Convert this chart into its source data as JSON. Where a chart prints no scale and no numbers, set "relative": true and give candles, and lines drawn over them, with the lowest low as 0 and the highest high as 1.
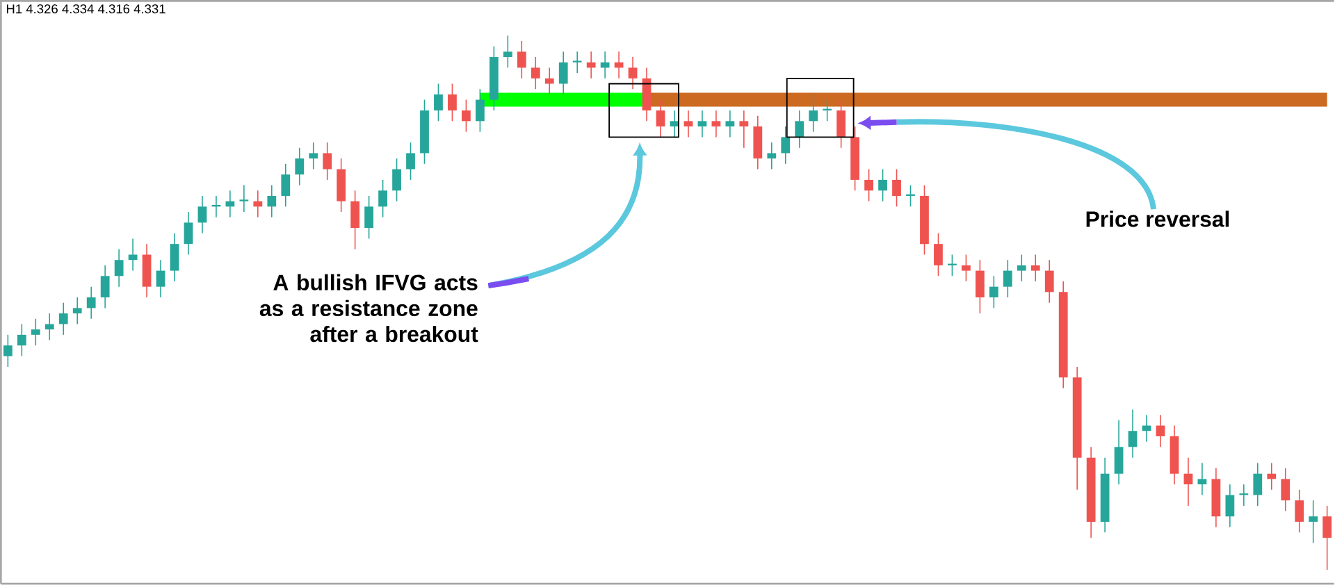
{
  "chart_data": {
    "type": "candlestick",
    "relative": true,
    "categories": [
      null,
      null,
      null,
      null,
      null,
      null,
      null,
      null,
      null,
      null,
      null,
      null,
      null,
      null,
      null,
      null,
      null,
      null,
      null,
      null,
      null,
      null,
      null,
      null,
      null,
      null,
      null,
      null,
      null,
      null,
      null,
      null,
      null,
      null,
      null,
      null,
      null,
      null,
      null,
      null,
      null,
      null,
      null,
      null,
      null,
      null,
      null,
      null,
      null,
      null,
      null,
      null,
      null,
      null,
      null,
      null,
      null,
      null,
      null,
      null,
      null,
      null,
      null,
      null,
      null,
      null,
      null,
      null,
      null,
      null,
      null,
      null,
      null,
      null,
      null,
      null,
      null,
      null,
      null,
      null,
      null,
      null,
      null,
      null,
      null,
      null,
      null,
      null,
      null,
      null,
      null,
      null,
      null,
      null,
      null,
      null
    ],
    "ohlc": [
      [
        0.4,
        0.44,
        0.38,
        0.42
      ],
      [
        0.42,
        0.46,
        0.4,
        0.44
      ],
      [
        0.44,
        0.47,
        0.42,
        0.45
      ],
      [
        0.45,
        0.48,
        0.43,
        0.46
      ],
      [
        0.46,
        0.5,
        0.44,
        0.48
      ],
      [
        0.48,
        0.51,
        0.46,
        0.49
      ],
      [
        0.49,
        0.53,
        0.47,
        0.51
      ],
      [
        0.51,
        0.57,
        0.49,
        0.55
      ],
      [
        0.55,
        0.6,
        0.53,
        0.58
      ],
      [
        0.58,
        0.62,
        0.56,
        0.59
      ],
      [
        0.59,
        0.61,
        0.51,
        0.53
      ],
      [
        0.53,
        0.58,
        0.51,
        0.56
      ],
      [
        0.56,
        0.63,
        0.54,
        0.61
      ],
      [
        0.61,
        0.67,
        0.59,
        0.65
      ],
      [
        0.65,
        0.7,
        0.63,
        0.68
      ],
      [
        0.68,
        0.7,
        0.66,
        0.68
      ],
      [
        0.68,
        0.71,
        0.66,
        0.69
      ],
      [
        0.69,
        0.72,
        0.67,
        0.69
      ],
      [
        0.69,
        0.71,
        0.66,
        0.68
      ],
      [
        0.68,
        0.72,
        0.66,
        0.7
      ],
      [
        0.7,
        0.76,
        0.68,
        0.74
      ],
      [
        0.74,
        0.79,
        0.72,
        0.77
      ],
      [
        0.77,
        0.8,
        0.75,
        0.78
      ],
      [
        0.78,
        0.8,
        0.73,
        0.75
      ],
      [
        0.75,
        0.77,
        0.67,
        0.69
      ],
      [
        0.69,
        0.71,
        0.6,
        0.64
      ],
      [
        0.64,
        0.7,
        0.62,
        0.68
      ],
      [
        0.68,
        0.73,
        0.66,
        0.71
      ],
      [
        0.71,
        0.77,
        0.69,
        0.75
      ],
      [
        0.75,
        0.8,
        0.73,
        0.78
      ],
      [
        0.78,
        0.88,
        0.76,
        0.86
      ],
      [
        0.86,
        0.91,
        0.84,
        0.89
      ],
      [
        0.89,
        0.91,
        0.84,
        0.86
      ],
      [
        0.86,
        0.88,
        0.82,
        0.84
      ],
      [
        0.84,
        0.9,
        0.82,
        0.88
      ],
      [
        0.88,
        0.98,
        0.86,
        0.96
      ],
      [
        0.96,
        1.0,
        0.94,
        0.97
      ],
      [
        0.97,
        0.99,
        0.92,
        0.94
      ],
      [
        0.94,
        0.96,
        0.9,
        0.92
      ],
      [
        0.92,
        0.94,
        0.89,
        0.91
      ],
      [
        0.91,
        0.97,
        0.89,
        0.95
      ],
      [
        0.95,
        0.97,
        0.93,
        0.95
      ],
      [
        0.95,
        0.97,
        0.92,
        0.94
      ],
      [
        0.94,
        0.97,
        0.92,
        0.95
      ],
      [
        0.95,
        0.97,
        0.92,
        0.94
      ],
      [
        0.94,
        0.96,
        0.9,
        0.92
      ],
      [
        0.92,
        0.94,
        0.84,
        0.86
      ],
      [
        0.86,
        0.88,
        0.81,
        0.83
      ],
      [
        0.83,
        0.86,
        0.81,
        0.84
      ],
      [
        0.84,
        0.86,
        0.81,
        0.83
      ],
      [
        0.83,
        0.86,
        0.81,
        0.84
      ],
      [
        0.84,
        0.86,
        0.81,
        0.83
      ],
      [
        0.83,
        0.86,
        0.81,
        0.84
      ],
      [
        0.84,
        0.86,
        0.79,
        0.83
      ],
      [
        0.83,
        0.85,
        0.75,
        0.77
      ],
      [
        0.77,
        0.8,
        0.75,
        0.78
      ],
      [
        0.78,
        0.83,
        0.76,
        0.81
      ],
      [
        0.81,
        0.86,
        0.79,
        0.84
      ],
      [
        0.84,
        0.89,
        0.82,
        0.86
      ],
      [
        0.86,
        0.88,
        0.84,
        0.86
      ],
      [
        0.86,
        0.88,
        0.79,
        0.81
      ],
      [
        0.81,
        0.83,
        0.71,
        0.73
      ],
      [
        0.73,
        0.75,
        0.69,
        0.71
      ],
      [
        0.71,
        0.75,
        0.69,
        0.73
      ],
      [
        0.73,
        0.75,
        0.68,
        0.7
      ],
      [
        0.7,
        0.72,
        0.68,
        0.7
      ],
      [
        0.7,
        0.72,
        0.59,
        0.61
      ],
      [
        0.61,
        0.63,
        0.55,
        0.57
      ],
      [
        0.57,
        0.59,
        0.55,
        0.57
      ],
      [
        0.57,
        0.59,
        0.54,
        0.56
      ],
      [
        0.56,
        0.58,
        0.48,
        0.51
      ],
      [
        0.51,
        0.55,
        0.49,
        0.53
      ],
      [
        0.53,
        0.58,
        0.51,
        0.56
      ],
      [
        0.56,
        0.59,
        0.54,
        0.57
      ],
      [
        0.57,
        0.59,
        0.54,
        0.56
      ],
      [
        0.56,
        0.58,
        0.5,
        0.52
      ],
      [
        0.52,
        0.54,
        0.34,
        0.36
      ],
      [
        0.36,
        0.38,
        0.15,
        0.21
      ],
      [
        0.21,
        0.23,
        0.06,
        0.09
      ],
      [
        0.09,
        0.21,
        0.07,
        0.18
      ],
      [
        0.18,
        0.28,
        0.16,
        0.23
      ],
      [
        0.23,
        0.3,
        0.21,
        0.26
      ],
      [
        0.26,
        0.29,
        0.24,
        0.27
      ],
      [
        0.27,
        0.29,
        0.23,
        0.25
      ],
      [
        0.25,
        0.27,
        0.16,
        0.18
      ],
      [
        0.18,
        0.21,
        0.12,
        0.16
      ],
      [
        0.16,
        0.2,
        0.14,
        0.17
      ],
      [
        0.17,
        0.19,
        0.08,
        0.1
      ],
      [
        0.1,
        0.16,
        0.08,
        0.14
      ],
      [
        0.14,
        0.16,
        0.12,
        0.14
      ],
      [
        0.14,
        0.2,
        0.12,
        0.18
      ],
      [
        0.18,
        0.2,
        0.15,
        0.17
      ],
      [
        0.17,
        0.19,
        0.11,
        0.13
      ],
      [
        0.13,
        0.15,
        0.07,
        0.09
      ],
      [
        0.09,
        0.13,
        0.05,
        0.1
      ],
      [
        0.1,
        0.12,
        0.0,
        0.06
      ]
    ],
    "series": [
      {
        "type": "line",
        "color": "#00ff00",
        "values": [
          null,
          null,
          null,
          null,
          null,
          null,
          null,
          null,
          null,
          null,
          null,
          null,
          null,
          null,
          null,
          null,
          null,
          null,
          null,
          null,
          null,
          null,
          null,
          null,
          null,
          null,
          null,
          null,
          null,
          null,
          null,
          null,
          null,
          null,
          0.88,
          0.88,
          0.88,
          0.88,
          0.88,
          0.88,
          0.88,
          0.88,
          0.88,
          0.88,
          0.88,
          0.88,
          0.88,
          null,
          null,
          null,
          null,
          null,
          null,
          null,
          null,
          null,
          null,
          null,
          null,
          null,
          null,
          null,
          null,
          null,
          null,
          null,
          null,
          null,
          null,
          null,
          null,
          null,
          null,
          null,
          null,
          null,
          null,
          null,
          null,
          null,
          null,
          null,
          null,
          null,
          null,
          null,
          null,
          null,
          null,
          null,
          null,
          null,
          null,
          null,
          null,
          null
        ]
      },
      {
        "type": "line",
        "color": "#cc6a21",
        "values": [
          null,
          null,
          null,
          null,
          null,
          null,
          null,
          null,
          null,
          null,
          null,
          null,
          null,
          null,
          null,
          null,
          null,
          null,
          null,
          null,
          null,
          null,
          null,
          null,
          null,
          null,
          null,
          null,
          null,
          null,
          null,
          null,
          null,
          null,
          null,
          null,
          null,
          null,
          null,
          null,
          null,
          null,
          null,
          null,
          null,
          null,
          0.88,
          0.88,
          0.88,
          0.88,
          0.88,
          0.88,
          0.88,
          0.88,
          0.88,
          0.88,
          0.88,
          0.88,
          0.88,
          0.88,
          0.88,
          0.88,
          0.88,
          0.88,
          0.88,
          0.88,
          0.88,
          0.88,
          0.88,
          0.88,
          0.88,
          0.88,
          0.88,
          0.88,
          0.88,
          0.88,
          0.88,
          0.88,
          0.88,
          0.88,
          0.88,
          0.88,
          0.88,
          0.88,
          0.88,
          0.88,
          0.88,
          0.88,
          0.88,
          0.88,
          0.88,
          0.88,
          0.88,
          0.88,
          0.88,
          0.88
        ]
      }
    ],
    "annotations": [
      "H1 4.326 4.334 4.316 4.331",
      "A bullish IFVG acts as a resistance zone after a breakout",
      "Price reversal"
    ]
  }
}
